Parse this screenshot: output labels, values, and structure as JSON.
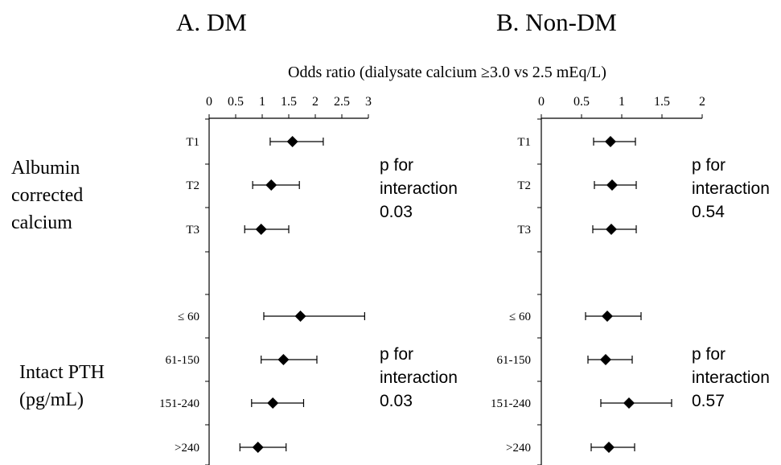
{
  "chart_data": {
    "type": "scatter",
    "figure_title": "Odds ratio (dialysate calcium ≥3.0 vs 2.5 mEq/L)",
    "group_labels": {
      "albumin": [
        "Albumin",
        "corrected",
        "calcium"
      ],
      "pth": [
        "Intact PTH",
        "(pg/mL)"
      ]
    },
    "categories": [
      "T1",
      "T2",
      "T3",
      "≤ 60",
      "61-150",
      "151-240",
      ">240"
    ],
    "panels": [
      {
        "id": "A",
        "title": "A. DM",
        "xlim": [
          0,
          3
        ],
        "xticks": [
          "0",
          "0.5",
          "1",
          "1.5",
          "2",
          "2.5",
          "3"
        ],
        "points": [
          {
            "label": "T1",
            "or": 1.57,
            "lo": 1.15,
            "hi": 2.15
          },
          {
            "label": "T2",
            "or": 1.17,
            "lo": 0.82,
            "hi": 1.7
          },
          {
            "label": "T3",
            "or": 0.98,
            "lo": 0.67,
            "hi": 1.5
          },
          {
            "label": "≤ 60",
            "or": 1.72,
            "lo": 1.03,
            "hi": 2.93
          },
          {
            "label": "61-150",
            "or": 1.4,
            "lo": 0.98,
            "hi": 2.03
          },
          {
            "label": "151-240",
            "or": 1.2,
            "lo": 0.8,
            "hi": 1.78
          },
          {
            "label": ">240",
            "or": 0.92,
            "lo": 0.58,
            "hi": 1.45
          }
        ],
        "interaction": [
          {
            "lines": [
              "p for",
              "interaction",
              "0.03"
            ]
          },
          {
            "lines": [
              "p for",
              "interaction",
              "0.03"
            ]
          }
        ]
      },
      {
        "id": "B",
        "title": "B. Non-DM",
        "xlim": [
          0,
          2
        ],
        "xticks": [
          "0",
          "0.5",
          "1",
          "1.5",
          "2"
        ],
        "points": [
          {
            "label": "T1",
            "or": 0.86,
            "lo": 0.65,
            "hi": 1.17
          },
          {
            "label": "T2",
            "or": 0.88,
            "lo": 0.66,
            "hi": 1.18
          },
          {
            "label": "T3",
            "or": 0.87,
            "lo": 0.64,
            "hi": 1.18
          },
          {
            "label": "≤ 60",
            "or": 0.82,
            "lo": 0.55,
            "hi": 1.24
          },
          {
            "label": "61-150",
            "or": 0.8,
            "lo": 0.58,
            "hi": 1.13
          },
          {
            "label": "151-240",
            "or": 1.09,
            "lo": 0.74,
            "hi": 1.62
          },
          {
            "label": ">240",
            "or": 0.84,
            "lo": 0.62,
            "hi": 1.16
          }
        ],
        "interaction": [
          {
            "lines": [
              "p for",
              "interaction",
              "0.54"
            ]
          },
          {
            "lines": [
              "p for",
              "interaction",
              "0.57"
            ]
          }
        ]
      }
    ]
  }
}
